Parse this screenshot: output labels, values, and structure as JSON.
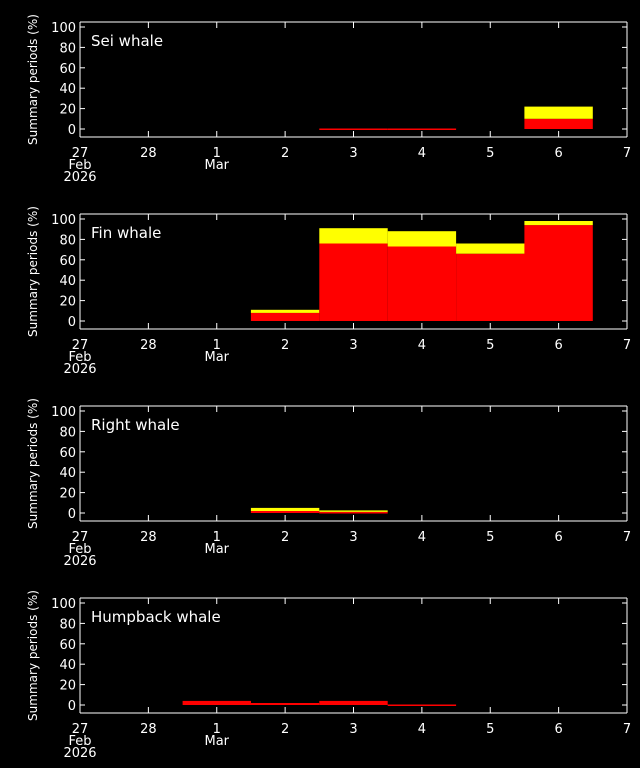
{
  "colors": {
    "background": "#000000",
    "axis": "#ffffff",
    "detected": "#ff0000",
    "possible": "#ffff00"
  },
  "chart_data": [
    {
      "type": "bar",
      "title": "Sei whale",
      "ylabel": "Summary periods (%)",
      "ylim": [
        0,
        100
      ],
      "yticks": [
        "100",
        "80",
        "60",
        "40",
        "20",
        "0"
      ],
      "xticks": [
        "27",
        "28",
        "1",
        "2",
        "3",
        "4",
        "5",
        "6",
        "7"
      ],
      "xsub": [
        "Feb",
        "",
        "Mar",
        "",
        "",
        "",
        "",
        "",
        ""
      ],
      "xyear": "2026",
      "stack": [
        {
          "color": "#ff0000",
          "values": [
            0,
            0,
            0,
            0,
            0.5,
            0.5,
            0,
            10,
            0
          ]
        },
        {
          "color": "#ffff00",
          "values": [
            0,
            0,
            0,
            0,
            0,
            0,
            0,
            12,
            0
          ]
        }
      ]
    },
    {
      "type": "bar",
      "title": "Fin whale",
      "ylabel": "Summary periods (%)",
      "ylim": [
        0,
        100
      ],
      "yticks": [
        "100",
        "80",
        "60",
        "40",
        "20",
        "0"
      ],
      "xticks": [
        "27",
        "28",
        "1",
        "2",
        "3",
        "4",
        "5",
        "6",
        "7"
      ],
      "xsub": [
        "Feb",
        "",
        "Mar",
        "",
        "",
        "",
        "",
        "",
        ""
      ],
      "xyear": "2026",
      "stack": [
        {
          "color": "#ff0000",
          "values": [
            0,
            0,
            0,
            8,
            76,
            73,
            66,
            94,
            0
          ]
        },
        {
          "color": "#ffff00",
          "values": [
            0,
            0,
            0,
            3,
            15,
            15,
            10,
            4,
            0
          ]
        }
      ]
    },
    {
      "type": "bar",
      "title": "Right whale",
      "ylabel": "Summary periods (%)",
      "ylim": [
        0,
        100
      ],
      "yticks": [
        "100",
        "80",
        "60",
        "40",
        "20",
        "0"
      ],
      "xticks": [
        "27",
        "28",
        "1",
        "2",
        "3",
        "4",
        "5",
        "6",
        "7"
      ],
      "xsub": [
        "Feb",
        "",
        "Mar",
        "",
        "",
        "",
        "",
        "",
        ""
      ],
      "xyear": "2026",
      "stack": [
        {
          "color": "#ff0000",
          "values": [
            0,
            0,
            0,
            2,
            1,
            0,
            0,
            0,
            0
          ]
        },
        {
          "color": "#ffff00",
          "values": [
            0,
            0,
            0,
            3,
            1.5,
            0,
            0,
            0,
            0
          ]
        }
      ]
    },
    {
      "type": "bar",
      "title": "Humpback whale",
      "ylabel": "Summary periods (%)",
      "ylim": [
        0,
        100
      ],
      "yticks": [
        "100",
        "80",
        "60",
        "40",
        "20",
        "0"
      ],
      "xticks": [
        "27",
        "28",
        "1",
        "2",
        "3",
        "4",
        "5",
        "6",
        "7"
      ],
      "xsub": [
        "Feb",
        "",
        "Mar",
        "",
        "",
        "",
        "",
        "",
        ""
      ],
      "xyear": "2026",
      "stack": [
        {
          "color": "#ff0000",
          "values": [
            0,
            0,
            4,
            2,
            4,
            0.5,
            0,
            0,
            0
          ]
        },
        {
          "color": "#ffff00",
          "values": [
            0,
            0,
            0,
            0,
            0,
            0,
            0,
            0,
            0
          ]
        }
      ]
    }
  ]
}
